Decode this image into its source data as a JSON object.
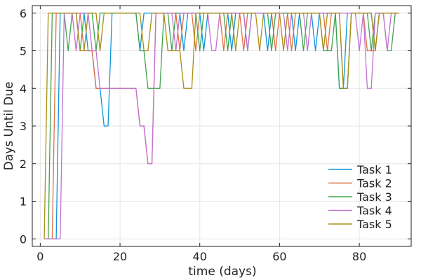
{
  "chart_data": {
    "type": "line",
    "xlabel": "time (days)",
    "ylabel": "Days Until Due",
    "xlim": [
      -2,
      93
    ],
    "ylim": [
      -0.2,
      6.2
    ],
    "xticks": [
      0,
      20,
      40,
      60,
      80
    ],
    "yticks": [
      0,
      1,
      2,
      3,
      4,
      5,
      6
    ],
    "grid": true,
    "legend_position": "bottom-right",
    "series": [
      {
        "name": "Task 1",
        "color": "#0B96DC",
        "points": [
          [
            1,
            0
          ],
          [
            4,
            0
          ],
          [
            5,
            6
          ],
          [
            11,
            6
          ],
          [
            12,
            5
          ],
          [
            13,
            5
          ],
          [
            14,
            4
          ],
          [
            15,
            4
          ],
          [
            16,
            3
          ],
          [
            17,
            3
          ],
          [
            18,
            6
          ],
          [
            20,
            6
          ],
          [
            21,
            6
          ],
          [
            24,
            6
          ],
          [
            25,
            5
          ],
          [
            26,
            6
          ],
          [
            35,
            6
          ],
          [
            36,
            5
          ],
          [
            37,
            6
          ],
          [
            40,
            6
          ],
          [
            41,
            5
          ],
          [
            42,
            6
          ],
          [
            47,
            6
          ],
          [
            48,
            5
          ],
          [
            49,
            6
          ],
          [
            51,
            6
          ],
          [
            52,
            5
          ],
          [
            53,
            6
          ],
          [
            56,
            6
          ],
          [
            57,
            5
          ],
          [
            58,
            6
          ],
          [
            63,
            6
          ],
          [
            64,
            5
          ],
          [
            65,
            6
          ],
          [
            68,
            6
          ],
          [
            69,
            5
          ],
          [
            70,
            6
          ],
          [
            74,
            6
          ],
          [
            75,
            4
          ],
          [
            76,
            4
          ],
          [
            77,
            6
          ],
          [
            83,
            6
          ],
          [
            84,
            5
          ],
          [
            85,
            6
          ],
          [
            90,
            6
          ]
        ]
      },
      {
        "name": "Task 2",
        "color": "#E26F46",
        "points": [
          [
            1,
            0
          ],
          [
            3,
            0
          ],
          [
            4,
            6
          ],
          [
            10,
            6
          ],
          [
            11,
            5
          ],
          [
            12,
            5
          ],
          [
            13,
            5
          ],
          [
            14,
            4
          ],
          [
            15,
            4
          ],
          [
            24,
            4
          ],
          [
            25,
            3
          ],
          [
            26,
            3
          ],
          [
            27,
            2
          ],
          [
            28,
            2
          ],
          [
            29,
            6
          ],
          [
            34,
            6
          ],
          [
            35,
            5
          ],
          [
            36,
            6
          ],
          [
            38,
            6
          ],
          [
            39,
            5
          ],
          [
            40,
            6
          ],
          [
            45,
            6
          ],
          [
            46,
            5
          ],
          [
            47,
            6
          ],
          [
            50,
            6
          ],
          [
            51,
            5
          ],
          [
            52,
            6
          ],
          [
            58,
            6
          ],
          [
            59,
            5
          ],
          [
            60,
            6
          ],
          [
            62,
            6
          ],
          [
            63,
            5
          ],
          [
            64,
            6
          ],
          [
            71,
            6
          ],
          [
            72,
            5
          ],
          [
            73,
            6
          ],
          [
            75,
            6
          ],
          [
            76,
            4
          ],
          [
            77,
            4
          ],
          [
            78,
            6
          ],
          [
            81,
            6
          ],
          [
            82,
            5
          ],
          [
            84,
            5
          ],
          [
            85,
            6
          ],
          [
            90,
            6
          ]
        ]
      },
      {
        "name": "Task 3",
        "color": "#3DA44D",
        "points": [
          [
            1,
            0
          ],
          [
            2,
            0
          ],
          [
            3,
            6
          ],
          [
            6,
            6
          ],
          [
            7,
            5
          ],
          [
            8,
            6
          ],
          [
            9,
            6
          ],
          [
            10,
            5
          ],
          [
            11,
            6
          ],
          [
            13,
            6
          ],
          [
            14,
            5
          ],
          [
            15,
            6
          ],
          [
            24,
            6
          ],
          [
            25,
            5
          ],
          [
            26,
            5
          ],
          [
            27,
            4
          ],
          [
            30,
            4
          ],
          [
            31,
            6
          ],
          [
            32,
            6
          ],
          [
            33,
            5
          ],
          [
            34,
            6
          ],
          [
            39,
            6
          ],
          [
            40,
            5
          ],
          [
            41,
            6
          ],
          [
            46,
            6
          ],
          [
            47,
            5
          ],
          [
            48,
            6
          ],
          [
            57,
            6
          ],
          [
            58,
            5
          ],
          [
            59,
            6
          ],
          [
            65,
            6
          ],
          [
            66,
            5
          ],
          [
            67,
            6
          ],
          [
            70,
            6
          ],
          [
            71,
            5
          ],
          [
            73,
            5
          ],
          [
            74,
            6
          ],
          [
            75,
            4
          ],
          [
            77,
            4
          ],
          [
            78,
            6
          ],
          [
            82,
            6
          ],
          [
            83,
            5
          ],
          [
            84,
            6
          ],
          [
            86,
            6
          ],
          [
            87,
            5
          ],
          [
            88,
            5
          ],
          [
            89,
            6
          ],
          [
            90,
            6
          ]
        ]
      },
      {
        "name": "Task 4",
        "color": "#C271D2",
        "points": [
          [
            1,
            0
          ],
          [
            5,
            0
          ],
          [
            6,
            6
          ],
          [
            8,
            6
          ],
          [
            9,
            5
          ],
          [
            10,
            6
          ],
          [
            12,
            6
          ],
          [
            13,
            5
          ],
          [
            14,
            5
          ],
          [
            15,
            4
          ],
          [
            24,
            4
          ],
          [
            25,
            3
          ],
          [
            26,
            3
          ],
          [
            27,
            2
          ],
          [
            28,
            2
          ],
          [
            29,
            6
          ],
          [
            33,
            6
          ],
          [
            34,
            5
          ],
          [
            35,
            6
          ],
          [
            42,
            6
          ],
          [
            43,
            5
          ],
          [
            44,
            5
          ],
          [
            45,
            6
          ],
          [
            51,
            6
          ],
          [
            52,
            5
          ],
          [
            53,
            6
          ],
          [
            61,
            6
          ],
          [
            62,
            5
          ],
          [
            63,
            6
          ],
          [
            66,
            6
          ],
          [
            67,
            5
          ],
          [
            68,
            6
          ],
          [
            79,
            6
          ],
          [
            80,
            5
          ],
          [
            81,
            6
          ],
          [
            82,
            4
          ],
          [
            83,
            4
          ],
          [
            84,
            6
          ],
          [
            86,
            6
          ],
          [
            87,
            5
          ],
          [
            88,
            6
          ],
          [
            90,
            6
          ]
        ]
      },
      {
        "name": "Task 5",
        "color": "#AC8D18",
        "points": [
          [
            1,
            0
          ],
          [
            2,
            6
          ],
          [
            9,
            6
          ],
          [
            10,
            5
          ],
          [
            11,
            5
          ],
          [
            12,
            6
          ],
          [
            14,
            6
          ],
          [
            15,
            5
          ],
          [
            16,
            6
          ],
          [
            24,
            6
          ],
          [
            25,
            6
          ],
          [
            26,
            5
          ],
          [
            27,
            5
          ],
          [
            28,
            6
          ],
          [
            31,
            6
          ],
          [
            32,
            5
          ],
          [
            35,
            5
          ],
          [
            36,
            4
          ],
          [
            38,
            4
          ],
          [
            39,
            6
          ],
          [
            48,
            6
          ],
          [
            49,
            5
          ],
          [
            50,
            6
          ],
          [
            54,
            6
          ],
          [
            55,
            5
          ],
          [
            56,
            6
          ],
          [
            60,
            6
          ],
          [
            61,
            5
          ],
          [
            62,
            6
          ],
          [
            70,
            6
          ],
          [
            71,
            5
          ],
          [
            72,
            6
          ],
          [
            75,
            6
          ],
          [
            76,
            4
          ],
          [
            77,
            4
          ],
          [
            78,
            6
          ],
          [
            83,
            6
          ],
          [
            84,
            5
          ],
          [
            85,
            6
          ],
          [
            90,
            6
          ]
        ]
      }
    ]
  }
}
